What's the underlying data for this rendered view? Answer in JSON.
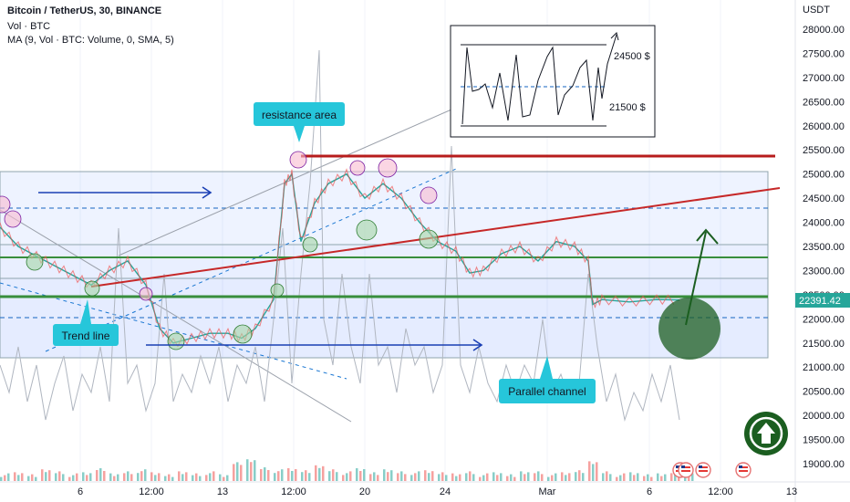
{
  "header": {
    "symbol_line": "Bitcoin / TetherUS, 30, BINANCE",
    "vol_line": "Vol · BTC",
    "ma_line": "MA (9, Vol · BTC: Volume, 0, SMA, 5)"
  },
  "price_axis": {
    "currency": "USDT",
    "current_price": "22391.42",
    "current_price_color": "#26a69a"
  },
  "annotations": {
    "resistance": "resistance area",
    "trend_line": "Trend line",
    "parallel_channel": "Parallel channel",
    "inset_upper": "24500 $",
    "inset_lower": "21500 $"
  },
  "colors": {
    "channel_fill": "#2962ff",
    "resistance_line": "#b71c1c",
    "trend_line": "#c62828",
    "support_line": "#388e3c",
    "arrow_blue": "#1a3fb4",
    "target_circle": "#1b5e20",
    "label_bg": "#26c6da",
    "up_button": "#1b5e20"
  },
  "icons": [
    "up-arrow-icon",
    "us-flag-icon"
  ],
  "chart_data": {
    "type": "line",
    "title": "Bitcoin / TetherUS, 30, BINANCE",
    "ylim": [
      18900,
      28300
    ],
    "yticks": [
      28000,
      27500,
      27000,
      26500,
      26000,
      25500,
      25000,
      24500,
      24000,
      23500,
      23000,
      22500,
      22000,
      21500,
      21000,
      20500,
      20000,
      19500,
      19000
    ],
    "ytick_labels": [
      "28000.00",
      "27500.00",
      "27000.00",
      "26500.00",
      "26000.00",
      "25500.00",
      "25000.00",
      "24500.00",
      "24000.00",
      "23500.00",
      "23000.00",
      "22500.00",
      "22000.00",
      "21500.00",
      "21000.00",
      "20500.00",
      "20000.00",
      "19500.00",
      "19000.00"
    ],
    "xticks": [
      "6",
      "12:00",
      "13",
      "12:00",
      "20",
      "24",
      "Mar",
      "6",
      "12:00",
      "13"
    ],
    "price_series": {
      "name": "BTCUSDT",
      "x": [
        0,
        20,
        40,
        60,
        80,
        100,
        120,
        140,
        160,
        175,
        190,
        210,
        230,
        250,
        265,
        280,
        300,
        312,
        320,
        330,
        345,
        360,
        380,
        400,
        420,
        440,
        460,
        480,
        500,
        515,
        530,
        550,
        570,
        590,
        610,
        630,
        645,
        650,
        660,
        690,
        720,
        745
      ],
      "y": [
        23900,
        23500,
        23300,
        23100,
        22900,
        22700,
        23000,
        23200,
        22700,
        21800,
        21500,
        21600,
        21700,
        21700,
        21600,
        21800,
        22400,
        24800,
        25000,
        23600,
        24400,
        24800,
        25000,
        24500,
        24800,
        24500,
        24000,
        23600,
        23400,
        22950,
        23000,
        23350,
        23500,
        23200,
        23600,
        23500,
        23200,
        22300,
        22400,
        22350,
        22400,
        22390
      ]
    },
    "levels": {
      "resistance_area": 25400,
      "support_upper": 23300,
      "support_lower": 22400,
      "channel_top": 25050,
      "channel_bottom": 21200,
      "inset_upper_level": 24500,
      "inset_lower_level": 21500
    },
    "volume_x": [
      0,
      15,
      30,
      45,
      60,
      75,
      90,
      105,
      120,
      135,
      150,
      165,
      180,
      195,
      210,
      225,
      240,
      255,
      270,
      285,
      300,
      315,
      330,
      345,
      360,
      375,
      390,
      405,
      420,
      435,
      450,
      465,
      480,
      495,
      510,
      525,
      540,
      555,
      570,
      585,
      600,
      615,
      630,
      645,
      660,
      675,
      690,
      705,
      720,
      735,
      750
    ],
    "volume_values": [
      2,
      3,
      2,
      4,
      3,
      2,
      3,
      5,
      2,
      3,
      4,
      3,
      2,
      3,
      2,
      3,
      2,
      8,
      9,
      5,
      4,
      5,
      4,
      6,
      4,
      3,
      5,
      3,
      4,
      3,
      3,
      4,
      3,
      2,
      3,
      2,
      3,
      2,
      3,
      3,
      2,
      3,
      4,
      8,
      3,
      2,
      3,
      2,
      2,
      3,
      2
    ]
  }
}
